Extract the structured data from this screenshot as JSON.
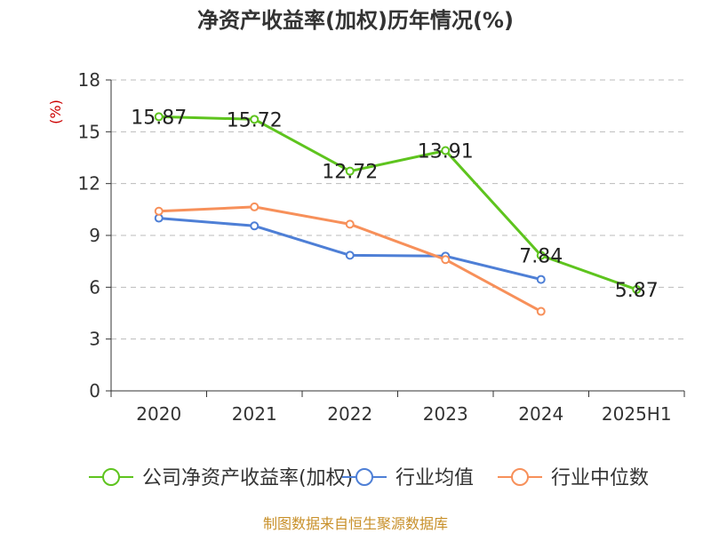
{
  "chart_data": {
    "type": "line",
    "title": "净资产收益率(加权)历年情况(%)",
    "ylabel": "(%)",
    "categories": [
      "2020",
      "2021",
      "2022",
      "2023",
      "2024",
      "2025H1"
    ],
    "ylim": [
      0,
      18
    ],
    "yticks": [
      0,
      3,
      6,
      9,
      12,
      15,
      18
    ],
    "grid": true,
    "legend_position": "bottom",
    "series": [
      {
        "name": "公司净资产收益率(加权)",
        "color": "#5ec41e",
        "values": [
          15.87,
          15.72,
          12.72,
          13.91,
          7.84,
          5.87
        ],
        "labels": [
          "15.87",
          "15.72",
          "12.72",
          "13.91",
          "7.84",
          "5.87"
        ]
      },
      {
        "name": "行业均值",
        "color": "#4e7fd6",
        "values": [
          10.0,
          9.55,
          7.85,
          7.8,
          6.45,
          null
        ]
      },
      {
        "name": "行业中位数",
        "color": "#f7905a",
        "values": [
          10.4,
          10.65,
          9.65,
          7.6,
          4.6,
          null
        ]
      }
    ]
  },
  "footer": {
    "source": "制图数据来自恒生聚源数据库"
  }
}
